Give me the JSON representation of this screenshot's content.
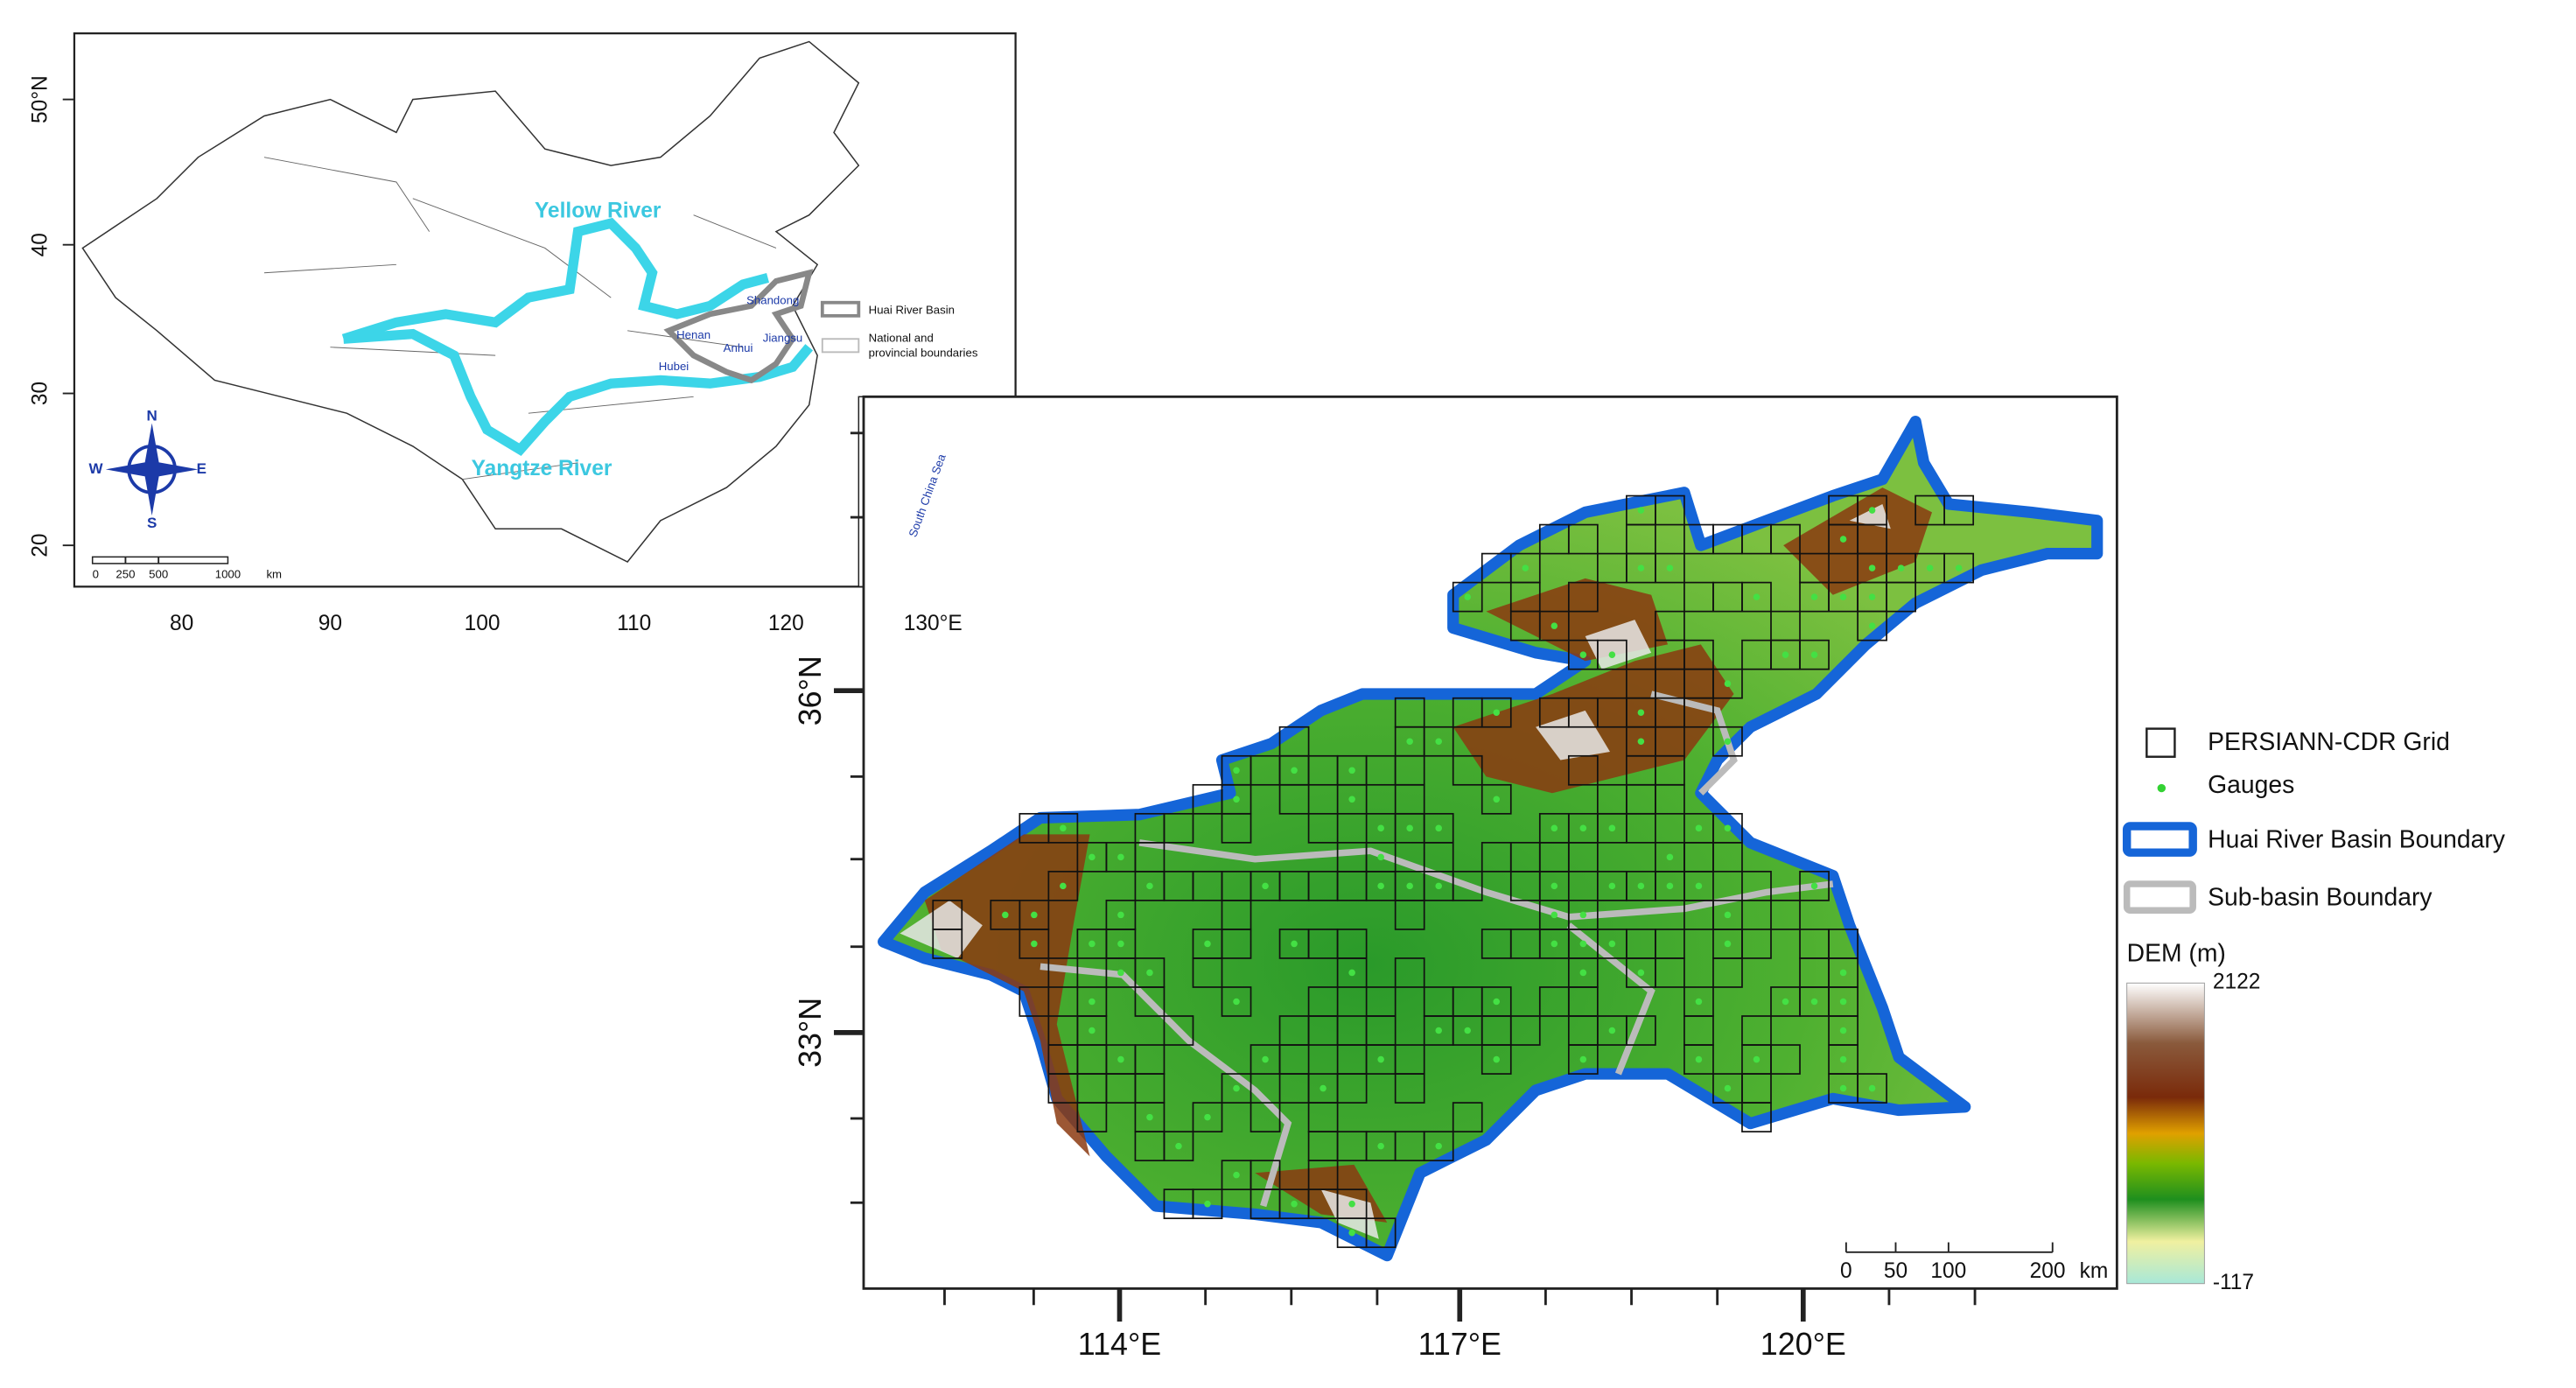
{
  "inset_map": {
    "y_ticks": [
      "50°N",
      "40",
      "30",
      "20"
    ],
    "x_ticks": [
      "80",
      "90",
      "100",
      "110",
      "120",
      "130°E"
    ],
    "rivers": [
      "Yellow River",
      "Yangtze River"
    ],
    "provinces": [
      "Shandong",
      "Henan",
      "Anhui",
      "Jiangsu",
      "Hubei"
    ],
    "sea": "South China Sea",
    "compass": [
      "N",
      "S",
      "E",
      "W"
    ],
    "scale": [
      "0",
      "250",
      "500",
      "1000",
      "km"
    ],
    "legend": [
      {
        "lines": [
          "Huai River Basin"
        ]
      },
      {
        "lines": [
          "National and",
          "provincial boundaries"
        ]
      }
    ]
  },
  "main_map": {
    "y_ticks": [
      "36°N",
      "33°N"
    ],
    "x_ticks": [
      "114°E",
      "117°E",
      "120°E"
    ],
    "scale": [
      "0",
      "50",
      "100",
      "200",
      "km"
    ]
  },
  "legend": {
    "items": [
      "PERSIANN-CDR Grid",
      "Gauges",
      "Huai River Basin Boundary",
      "Sub-basin Boundary"
    ],
    "dem_title": "DEM (m)",
    "dem_max": "2122",
    "dem_min": "-117"
  }
}
